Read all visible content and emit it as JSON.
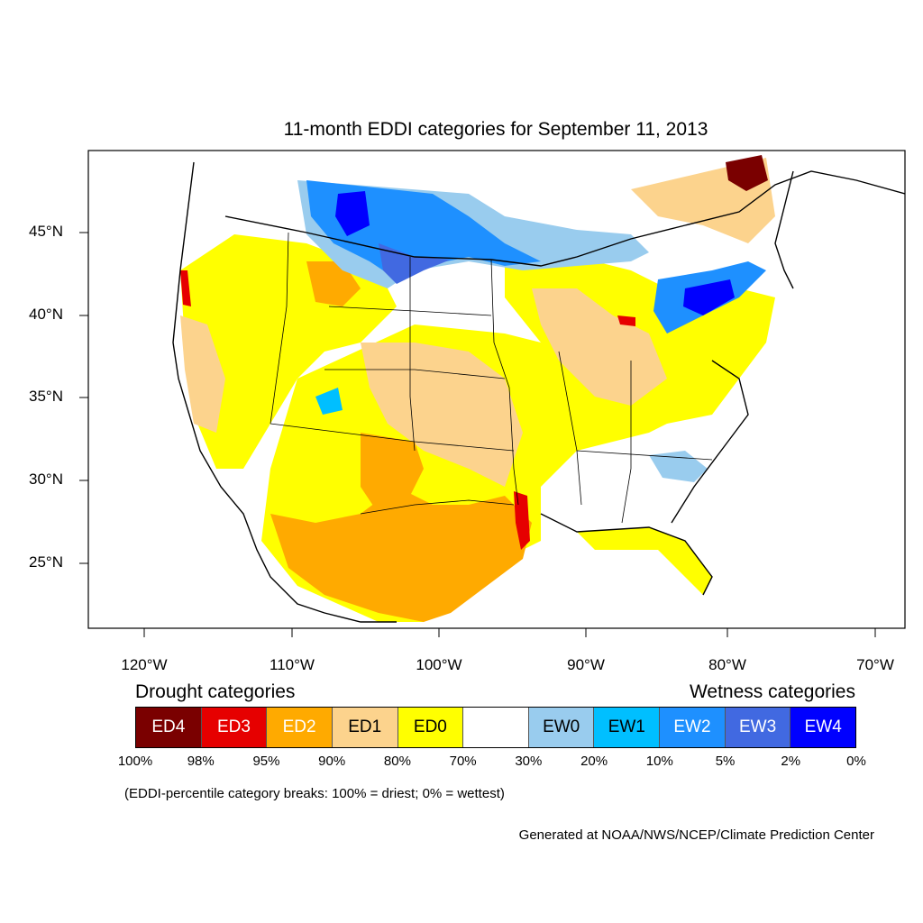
{
  "title": "11-month EDDI categories for September 11, 2013",
  "axes": {
    "lat_ticks": [
      "45°N",
      "40°N",
      "35°N",
      "30°N",
      "25°N"
    ],
    "lon_ticks": [
      "120°W",
      "110°W",
      "100°W",
      "90°W",
      "80°W",
      "70°W"
    ]
  },
  "legend": {
    "drought_label": "Drought categories",
    "wetness_label": "Wetness categories",
    "categories": [
      {
        "label": "ED4",
        "color": "#7a0000",
        "text_color": "#ffffff"
      },
      {
        "label": "ED3",
        "color": "#e60000",
        "text_color": "#ffffff"
      },
      {
        "label": "ED2",
        "color": "#ffaa00",
        "text_color": "#ffffff"
      },
      {
        "label": "ED1",
        "color": "#fcd38d",
        "text_color": "#000000"
      },
      {
        "label": "ED0",
        "color": "#ffff00",
        "text_color": "#000000"
      },
      {
        "label": "",
        "color": "#ffffff",
        "text_color": "#000000"
      },
      {
        "label": "EW0",
        "color": "#99ccee",
        "text_color": "#000000"
      },
      {
        "label": "EW1",
        "color": "#00bfff",
        "text_color": "#000000"
      },
      {
        "label": "EW2",
        "color": "#1e90ff",
        "text_color": "#ffffff"
      },
      {
        "label": "EW3",
        "color": "#4169e1",
        "text_color": "#ffffff"
      },
      {
        "label": "EW4",
        "color": "#0000ff",
        "text_color": "#ffffff"
      }
    ],
    "breaks": [
      "100%",
      "98%",
      "95%",
      "90%",
      "80%",
      "70%",
      "30%",
      "20%",
      "10%",
      "5%",
      "2%",
      "0%"
    ]
  },
  "note": "(EDDI-percentile category breaks: 100% = driest; 0% = wettest)",
  "credit": "Generated at NOAA/NWS/NCEP/Climate Prediction Center"
}
